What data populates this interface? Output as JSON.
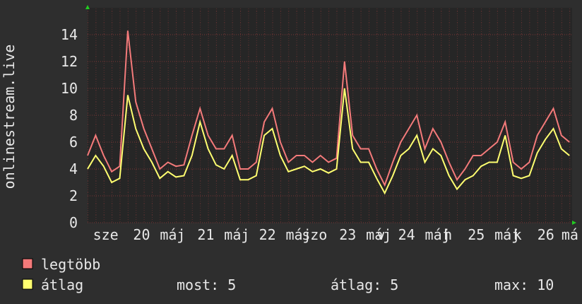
{
  "chart_data": {
    "type": "line",
    "ylabel": "onlinestream.live",
    "x": [
      0,
      3,
      6,
      9,
      12,
      15,
      18,
      21,
      24,
      27,
      30,
      33,
      36,
      39,
      42,
      45,
      48,
      51,
      54,
      57,
      60,
      63,
      66,
      69,
      72,
      75,
      78,
      81,
      84,
      87,
      90,
      93,
      96,
      99,
      102,
      105,
      108,
      111,
      114,
      117,
      120,
      123,
      126,
      129,
      132,
      135,
      138,
      141,
      144,
      147,
      150,
      153,
      156,
      159,
      162,
      165,
      168,
      171,
      174,
      177,
      180
    ],
    "series": [
      {
        "name": "legtöbb",
        "color": "#f47a7a",
        "values": [
          5.0,
          6.5,
          5.0,
          3.8,
          4.2,
          14.3,
          9.0,
          7.0,
          5.5,
          4.0,
          4.5,
          4.2,
          4.3,
          6.5,
          8.5,
          6.5,
          5.5,
          5.5,
          6.5,
          4.0,
          4.0,
          4.5,
          7.5,
          8.5,
          6.0,
          4.5,
          5.0,
          5.0,
          4.5,
          5.0,
          4.5,
          4.8,
          12.0,
          6.5,
          5.5,
          5.5,
          4.0,
          2.8,
          4.5,
          6.0,
          7.0,
          8.0,
          5.5,
          7.0,
          6.0,
          4.5,
          3.2,
          4.0,
          5.0,
          5.0,
          5.5,
          6.0,
          7.5,
          4.5,
          4.0,
          4.5,
          6.5,
          7.5,
          8.5,
          6.5,
          6.0
        ]
      },
      {
        "name": "átlag",
        "color": "#ffff70",
        "values": [
          4.0,
          5.0,
          4.2,
          3.0,
          3.3,
          9.5,
          7.0,
          5.5,
          4.5,
          3.3,
          3.8,
          3.4,
          3.5,
          5.0,
          7.5,
          5.5,
          4.3,
          4.0,
          5.0,
          3.2,
          3.2,
          3.5,
          6.5,
          7.0,
          5.0,
          3.8,
          4.0,
          4.2,
          3.8,
          4.0,
          3.7,
          4.0,
          10.0,
          5.5,
          4.5,
          4.5,
          3.3,
          2.2,
          3.5,
          5.0,
          5.5,
          6.5,
          4.5,
          5.5,
          5.0,
          3.5,
          2.5,
          3.2,
          3.5,
          4.2,
          4.5,
          4.5,
          6.5,
          3.5,
          3.3,
          3.5,
          5.2,
          6.2,
          7.0,
          5.5,
          5.0
        ]
      }
    ],
    "xlim": [
      0,
      181
    ],
    "xticks": [
      {
        "value": 2,
        "label": "sze"
      },
      {
        "value": 17,
        "label": "20"
      },
      {
        "value": 27,
        "label": "máj"
      },
      {
        "value": 41,
        "label": "21"
      },
      {
        "value": 51,
        "label": "máj"
      },
      {
        "value": 64,
        "label": "22"
      },
      {
        "value": 74,
        "label": "máj"
      },
      {
        "value": 80,
        "label": "szo"
      },
      {
        "value": 94,
        "label": "23"
      },
      {
        "value": 104,
        "label": "máj"
      },
      {
        "value": 108,
        "label": "v"
      },
      {
        "value": 116,
        "label": "24"
      },
      {
        "value": 126,
        "label": "máj"
      },
      {
        "value": 133,
        "label": "h"
      },
      {
        "value": 142,
        "label": "25"
      },
      {
        "value": 152,
        "label": "máj"
      },
      {
        "value": 159,
        "label": "k"
      },
      {
        "value": 168,
        "label": "26"
      },
      {
        "value": 177,
        "label": "má"
      }
    ],
    "ylim": [
      0,
      16
    ],
    "yticks": [
      0,
      2,
      4,
      6,
      8,
      10,
      12,
      14
    ],
    "grid": true,
    "legend_stats": [
      "most: 5",
      "átlag: 5",
      "max: 10"
    ]
  }
}
